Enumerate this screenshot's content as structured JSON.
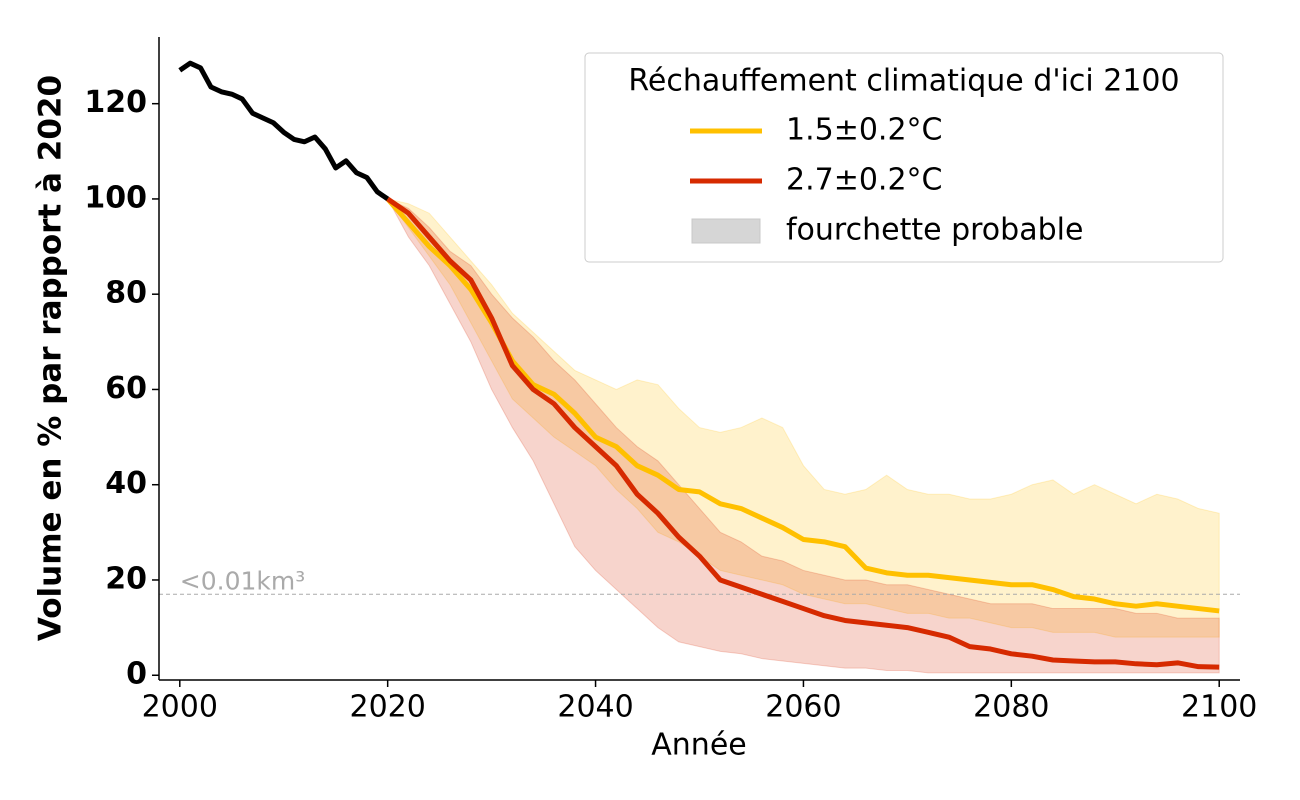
{
  "chart_data": {
    "type": "line",
    "xlabel": "Année",
    "ylabel": "Volume en % par rapport à 2020",
    "xlim": [
      1998,
      2102
    ],
    "ylim": [
      -1,
      134
    ],
    "xticks": [
      2000,
      2020,
      2040,
      2060,
      2080,
      2100
    ],
    "yticks": [
      0,
      20,
      40,
      60,
      80,
      100,
      120
    ],
    "legend_title": "Réchauffement climatique d'ici 2100",
    "legend_position": "upper right",
    "band_label": "fourchette probable",
    "band_color": "#d6d6d6",
    "hline": {
      "value": 17,
      "label": "<0.01km³",
      "color": "#aaaaaa"
    },
    "series": [
      {
        "color": "#000000",
        "x": [
          2000,
          2001,
          2002,
          2003,
          2004,
          2005,
          2006,
          2007,
          2008,
          2009,
          2010,
          2011,
          2012,
          2013,
          2014,
          2015,
          2016,
          2017,
          2018,
          2019,
          2020
        ],
        "values": [
          127,
          128.5,
          127.5,
          123.5,
          122.5,
          122,
          121,
          118,
          117,
          116,
          114,
          112.5,
          112,
          113,
          110.5,
          106.5,
          108,
          105.5,
          104.5,
          101.5,
          100
        ]
      },
      {
        "name": "1.5±0.2°C",
        "color": "#ffc000",
        "x": [
          2020,
          2022,
          2024,
          2026,
          2028,
          2030,
          2032,
          2034,
          2036,
          2038,
          2040,
          2042,
          2044,
          2046,
          2048,
          2050,
          2052,
          2054,
          2056,
          2058,
          2060,
          2062,
          2064,
          2066,
          2068,
          2070,
          2072,
          2074,
          2076,
          2078,
          2080,
          2082,
          2084,
          2086,
          2088,
          2090,
          2092,
          2094,
          2096,
          2098,
          2100
        ],
        "values": [
          100,
          95,
          90,
          86,
          81,
          74,
          66,
          61,
          59,
          55,
          50,
          48,
          44,
          42,
          39,
          38.5,
          36,
          35,
          33,
          31,
          28.5,
          28,
          27,
          22.5,
          21.5,
          21,
          21,
          20.5,
          20,
          19.5,
          19,
          19,
          18,
          16.5,
          16,
          15,
          14.5,
          15,
          14.5,
          14,
          13.5
        ],
        "upper": [
          100,
          99,
          97,
          92,
          87,
          82,
          76,
          72,
          68,
          64,
          62,
          60,
          62,
          61,
          56,
          52,
          51,
          52,
          54,
          52,
          44,
          39,
          38,
          39,
          42,
          39,
          38,
          38,
          37,
          37,
          38,
          40,
          41,
          38,
          40,
          38,
          36,
          38,
          37,
          35,
          34
        ],
        "lower": [
          100,
          94,
          88,
          82,
          74,
          66,
          58,
          54,
          50,
          47,
          44,
          39,
          35,
          30,
          28,
          25,
          22,
          21,
          20,
          19,
          17,
          16,
          15,
          15,
          14,
          13,
          13,
          12,
          12,
          11,
          10,
          10,
          9,
          9,
          9,
          8,
          8,
          8,
          8,
          8,
          8
        ]
      },
      {
        "name": "2.7±0.2°C",
        "color": "#d62a00",
        "x": [
          2020,
          2022,
          2024,
          2026,
          2028,
          2030,
          2032,
          2034,
          2036,
          2038,
          2040,
          2042,
          2044,
          2046,
          2048,
          2050,
          2052,
          2054,
          2056,
          2058,
          2060,
          2062,
          2064,
          2066,
          2068,
          2070,
          2072,
          2074,
          2076,
          2078,
          2080,
          2082,
          2084,
          2086,
          2088,
          2090,
          2092,
          2094,
          2096,
          2098,
          2100
        ],
        "values": [
          100,
          97,
          92,
          87,
          83,
          75,
          65,
          60,
          57,
          52,
          48,
          44,
          38,
          34,
          29,
          25,
          20,
          18.5,
          17,
          15.5,
          14,
          12.5,
          11.5,
          11,
          10.5,
          10,
          9,
          8,
          6,
          5.5,
          4.5,
          4,
          3.2,
          3,
          2.8,
          2.8,
          2.4,
          2.2,
          2.6,
          1.8,
          1.7
        ],
        "upper": [
          100,
          98,
          94,
          89,
          86,
          80,
          75,
          71,
          66,
          62,
          57,
          52,
          48,
          45,
          40,
          35,
          30,
          28,
          25,
          24,
          22,
          21,
          20,
          20,
          19,
          19,
          18,
          17,
          16,
          15,
          15,
          15,
          14,
          14,
          14,
          14,
          13,
          13,
          12,
          12,
          12
        ],
        "lower": [
          100,
          92,
          86,
          78,
          70,
          60,
          52,
          45,
          36,
          27,
          22,
          18,
          14,
          10,
          7,
          6,
          5,
          4.5,
          3.5,
          3,
          2.5,
          2,
          1.5,
          1.5,
          1,
          1,
          0.5,
          0.5,
          0.5,
          0.5,
          0.5,
          0.5,
          0.5,
          0.5,
          0.5,
          0.5,
          0.5,
          0.5,
          0.5,
          0.5,
          0.5
        ]
      }
    ]
  }
}
